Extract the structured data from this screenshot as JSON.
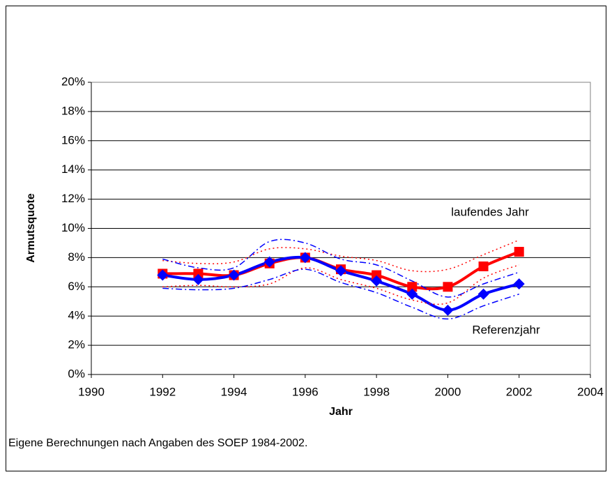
{
  "chart_data": {
    "type": "line",
    "x_label": "Jahr",
    "y_label": "Armutsquote",
    "source": "Eigene Berechnungen nach Angaben des SOEP 1984-2002.",
    "x": [
      1992,
      1993,
      1994,
      1995,
      1996,
      1997,
      1998,
      1999,
      2000,
      2001,
      2002
    ],
    "series": [
      {
        "name": "laufendes Jahr",
        "color": "#ff0000",
        "marker": "square",
        "style": "solid",
        "values": [
          6.9,
          6.9,
          6.8,
          7.6,
          8.0,
          7.2,
          6.8,
          6.0,
          6.0,
          7.4,
          8.4
        ]
      },
      {
        "name": "Referenzjahr",
        "color": "#0000ff",
        "marker": "diamond",
        "style": "solid",
        "values": [
          6.8,
          6.5,
          6.8,
          7.7,
          8.0,
          7.1,
          6.4,
          5.5,
          4.4,
          5.5,
          6.2
        ]
      },
      {
        "color": "#ff0000",
        "style": "dotted",
        "values": [
          7.8,
          7.6,
          7.7,
          8.6,
          8.6,
          8.1,
          7.8,
          7.1,
          7.2,
          8.2,
          9.2
        ]
      },
      {
        "color": "#ff0000",
        "style": "dotted",
        "values": [
          6.0,
          6.1,
          6.0,
          6.2,
          7.3,
          6.5,
          5.9,
          5.1,
          4.9,
          6.6,
          7.5
        ]
      },
      {
        "color": "#0000ff",
        "style": "dashdot",
        "values": [
          7.9,
          7.3,
          7.3,
          9.1,
          9.0,
          7.9,
          7.5,
          6.4,
          5.3,
          6.2,
          7.0
        ]
      },
      {
        "color": "#0000ff",
        "style": "dashdot",
        "values": [
          5.9,
          5.8,
          5.9,
          6.5,
          7.2,
          6.3,
          5.6,
          4.6,
          3.8,
          4.7,
          5.5
        ]
      }
    ],
    "xlim": [
      1990,
      2004
    ],
    "xticks": [
      1990,
      1992,
      1994,
      1996,
      1998,
      2000,
      2002,
      2004
    ],
    "ylim": [
      0,
      20
    ],
    "yticks": [
      {
        "value": 0,
        "label": "0%"
      },
      {
        "value": 2,
        "label": "2%"
      },
      {
        "value": 4,
        "label": "4%"
      },
      {
        "value": 6,
        "label": "6%"
      },
      {
        "value": 8,
        "label": "8%"
      },
      {
        "value": 10,
        "label": "10%"
      },
      {
        "value": 12,
        "label": "12%"
      },
      {
        "value": 14,
        "label": "14%"
      },
      {
        "value": 16,
        "label": "16%"
      },
      {
        "value": 18,
        "label": "18%"
      },
      {
        "value": 20,
        "label": "20%"
      }
    ],
    "grid": true
  }
}
